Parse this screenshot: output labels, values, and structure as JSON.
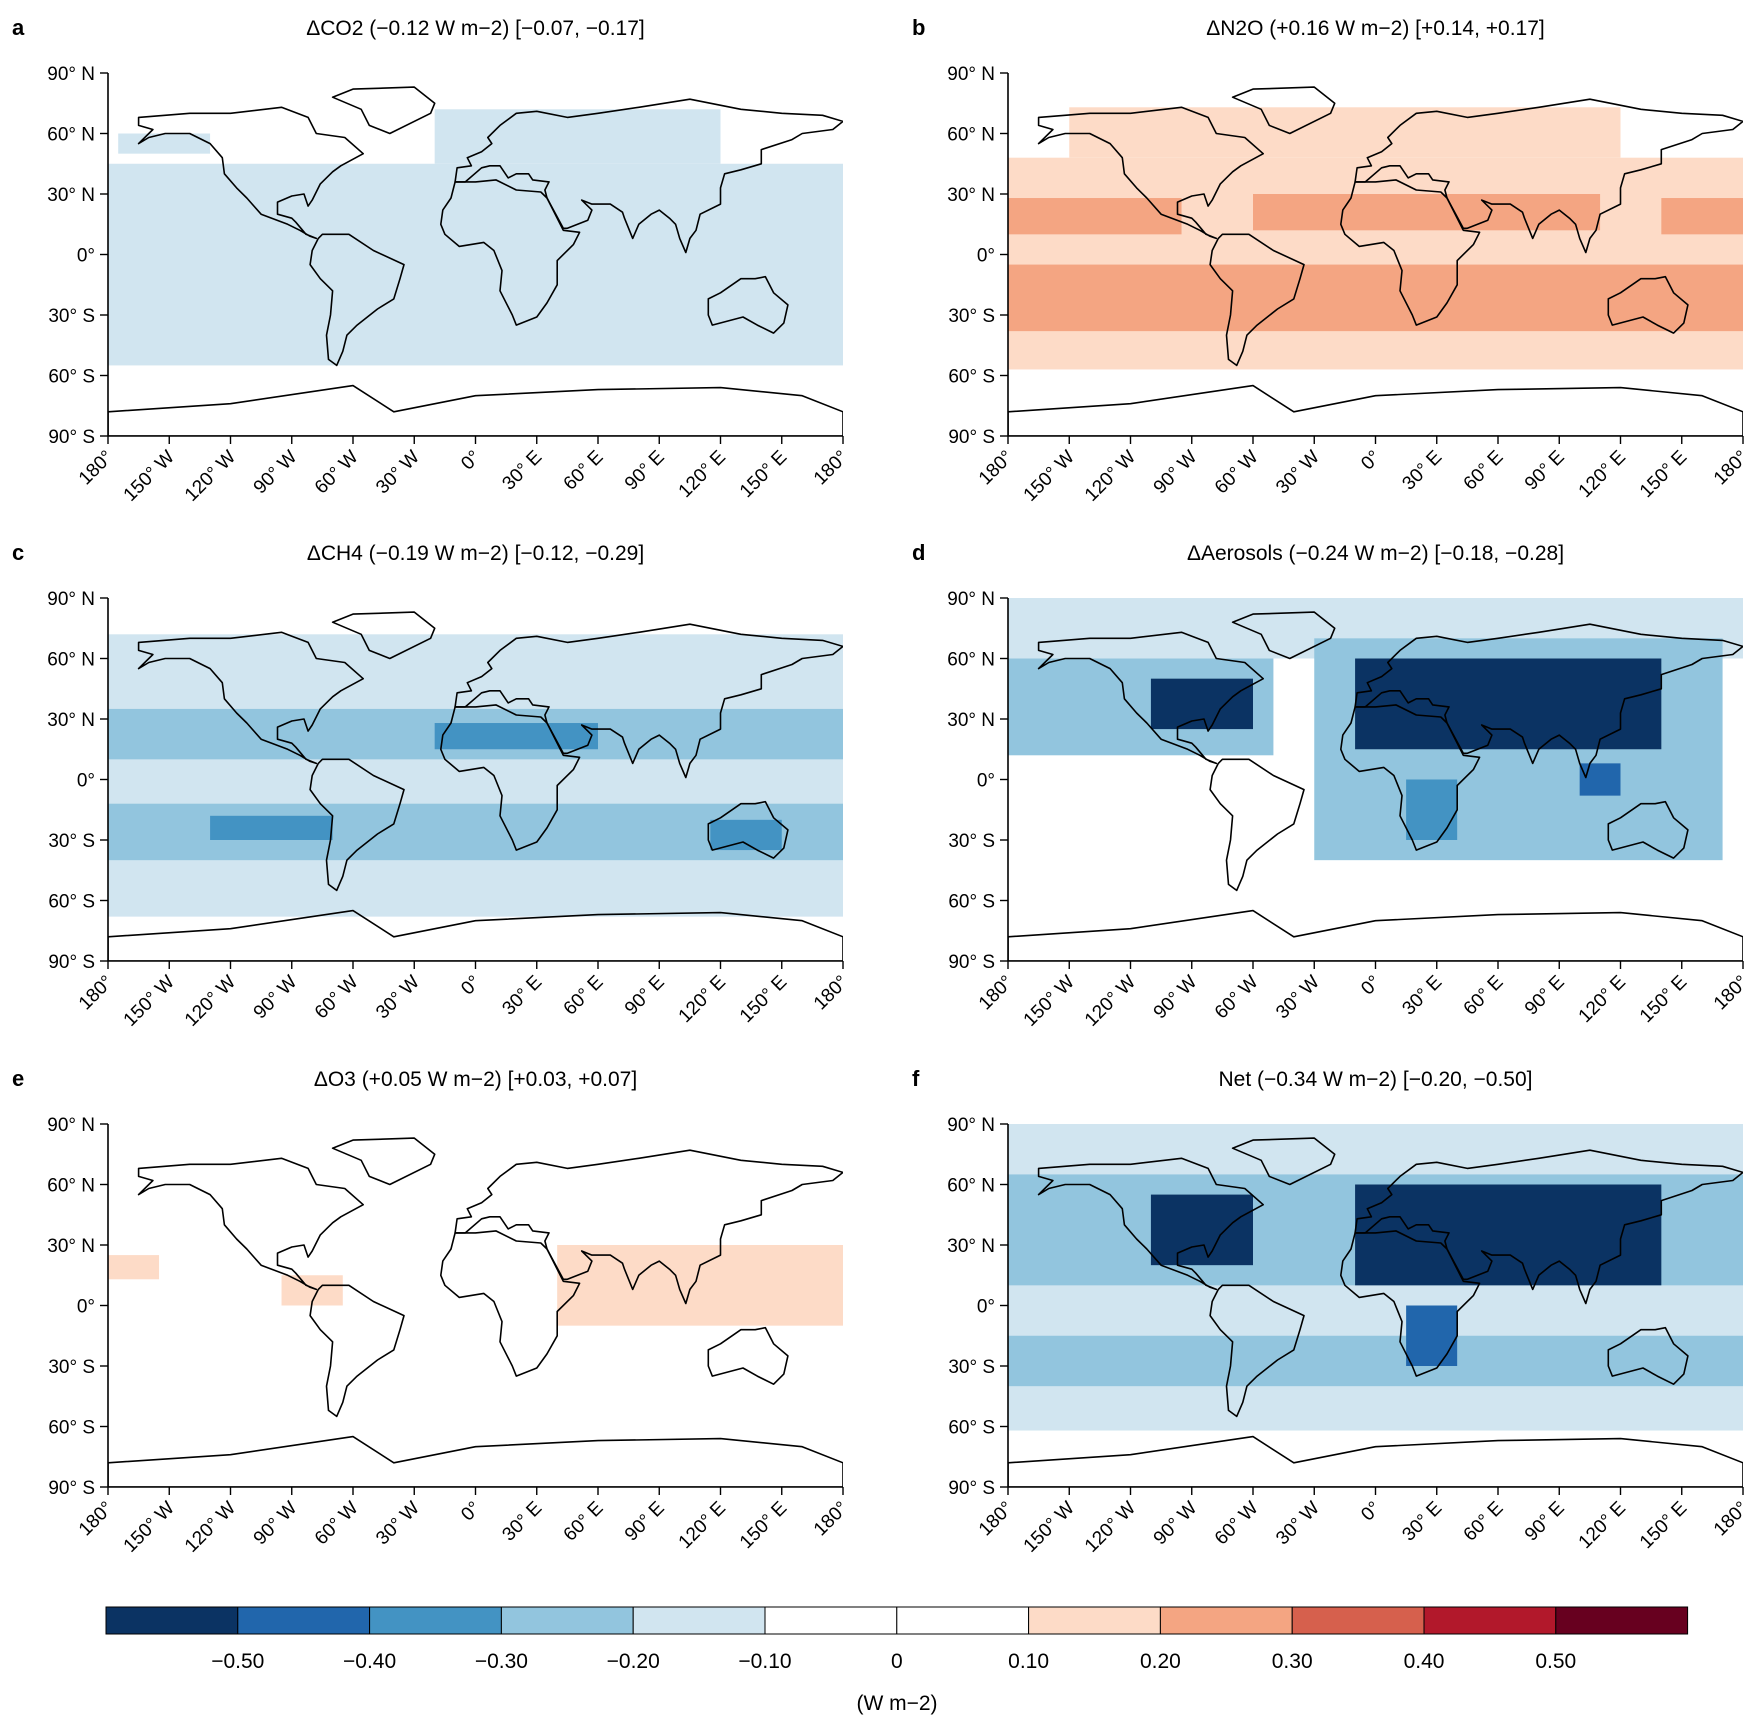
{
  "units_label": "(W m−2)",
  "colorbar": {
    "colors": [
      "#0b3363",
      "#2166ac",
      "#4393c3",
      "#92c5de",
      "#d1e5f0",
      "#ffffff",
      "#ffffff",
      "#fddbc7",
      "#f4a582",
      "#d6604d",
      "#b2182b",
      "#67001f"
    ],
    "tick_labels": [
      "−0.50",
      "−0.40",
      "−0.30",
      "−0.20",
      "−0.10",
      "0",
      "0.10",
      "0.20",
      "0.30",
      "0.40",
      "0.50"
    ]
  },
  "lat_labels": [
    "90° N",
    "60° N",
    "30° N",
    "0°",
    "30° S",
    "60° S",
    "90° S"
  ],
  "lon_labels": [
    "180°",
    "150° W",
    "120° W",
    "90° W",
    "60° W",
    "30° W",
    "0°",
    "30° E",
    "60° E",
    "90° E",
    "120° E",
    "150° E",
    "180°"
  ],
  "panels": [
    {
      "letter": "a",
      "title": "ΔCO2 (−0.12 W m−2) [−0.07, −0.17]"
    },
    {
      "letter": "b",
      "title": "ΔN2O (+0.16 W m−2) [+0.14, +0.17]"
    },
    {
      "letter": "c",
      "title": "ΔCH4 (−0.19 W m−2) [−0.12, −0.29]"
    },
    {
      "letter": "d",
      "title": "ΔAerosols (−0.24 W m−2) [−0.18, −0.28]"
    },
    {
      "letter": "e",
      "title": "ΔO3 (+0.05 W m−2) [+0.03, +0.07]"
    },
    {
      "letter": "f",
      "title": "Net (−0.34 W m−2) [−0.20, −0.50]"
    }
  ],
  "chart_data": {
    "type": "heatmap",
    "x_axis": {
      "range": [
        -180,
        180
      ],
      "ticks": [
        -180,
        -150,
        -120,
        -90,
        -60,
        -30,
        0,
        30,
        60,
        90,
        120,
        150,
        180
      ]
    },
    "y_axis": {
      "range": [
        -90,
        90
      ],
      "ticks": [
        90,
        60,
        30,
        0,
        -30,
        -60,
        -90
      ]
    },
    "bins": [
      -0.5,
      -0.4,
      -0.3,
      -0.2,
      -0.1,
      0,
      0.1,
      0.2,
      0.3,
      0.4,
      0.5
    ],
    "panels": [
      {
        "letter": "a",
        "regions": [
          {
            "lon": [
              -180,
              180
            ],
            "lat": [
              -55,
              45
            ],
            "value": -0.15
          },
          {
            "lon": [
              -20,
              120
            ],
            "lat": [
              45,
              72
            ],
            "value": -0.15
          },
          {
            "lon": [
              -175,
              -130
            ],
            "lat": [
              50,
              60
            ],
            "value": -0.15
          }
        ]
      },
      {
        "letter": "b",
        "regions": [
          {
            "lon": [
              -180,
              180
            ],
            "lat": [
              -57,
              48
            ],
            "value": 0.15
          },
          {
            "lon": [
              -150,
              120
            ],
            "lat": [
              48,
              73
            ],
            "value": 0.15
          },
          {
            "lon": [
              -180,
              -95
            ],
            "lat": [
              10,
              28
            ],
            "value": 0.25
          },
          {
            "lon": [
              -60,
              110
            ],
            "lat": [
              12,
              30
            ],
            "value": 0.25
          },
          {
            "lon": [
              140,
              180
            ],
            "lat": [
              10,
              28
            ],
            "value": 0.25
          },
          {
            "lon": [
              -180,
              180
            ],
            "lat": [
              -38,
              -5
            ],
            "value": 0.25
          }
        ]
      },
      {
        "letter": "c",
        "regions": [
          {
            "lon": [
              -180,
              180
            ],
            "lat": [
              -68,
              72
            ],
            "value": -0.15
          },
          {
            "lon": [
              -180,
              180
            ],
            "lat": [
              10,
              35
            ],
            "value": -0.25
          },
          {
            "lon": [
              -180,
              180
            ],
            "lat": [
              -40,
              -12
            ],
            "value": -0.25
          },
          {
            "lon": [
              -20,
              60
            ],
            "lat": [
              15,
              28
            ],
            "value": -0.35
          },
          {
            "lon": [
              -130,
              -70
            ],
            "lat": [
              -30,
              -18
            ],
            "value": -0.35
          },
          {
            "lon": [
              115,
              150
            ],
            "lat": [
              -35,
              -20
            ],
            "value": -0.35
          }
        ]
      },
      {
        "letter": "d",
        "regions": [
          {
            "lon": [
              -180,
              180
            ],
            "lat": [
              60,
              90
            ],
            "value": -0.15
          },
          {
            "lon": [
              -180,
              -50
            ],
            "lat": [
              12,
              60
            ],
            "value": -0.25
          },
          {
            "lon": [
              -30,
              170
            ],
            "lat": [
              -40,
              70
            ],
            "value": -0.25
          },
          {
            "lon": [
              -110,
              -60
            ],
            "lat": [
              25,
              50
            ],
            "value": -0.55
          },
          {
            "lon": [
              -10,
              140
            ],
            "lat": [
              15,
              60
            ],
            "value": -0.55
          },
          {
            "lon": [
              100,
              120
            ],
            "lat": [
              -8,
              8
            ],
            "value": -0.45
          },
          {
            "lon": [
              15,
              40
            ],
            "lat": [
              -30,
              0
            ],
            "value": -0.35
          }
        ]
      },
      {
        "letter": "e",
        "regions": [
          {
            "lon": [
              -180,
              -155
            ],
            "lat": [
              13,
              25
            ],
            "value": 0.15
          },
          {
            "lon": [
              -95,
              -65
            ],
            "lat": [
              0,
              15
            ],
            "value": 0.15
          },
          {
            "lon": [
              40,
              180
            ],
            "lat": [
              -10,
              30
            ],
            "value": 0.15
          }
        ]
      },
      {
        "letter": "f",
        "regions": [
          {
            "lon": [
              -180,
              180
            ],
            "lat": [
              -62,
              90
            ],
            "value": -0.15
          },
          {
            "lon": [
              -180,
              180
            ],
            "lat": [
              10,
              65
            ],
            "value": -0.25
          },
          {
            "lon": [
              -180,
              180
            ],
            "lat": [
              -40,
              -15
            ],
            "value": -0.25
          },
          {
            "lon": [
              -110,
              -60
            ],
            "lat": [
              20,
              55
            ],
            "value": -0.55
          },
          {
            "lon": [
              -10,
              140
            ],
            "lat": [
              10,
              60
            ],
            "value": -0.55
          },
          {
            "lon": [
              15,
              40
            ],
            "lat": [
              -30,
              0
            ],
            "value": -0.45
          }
        ]
      }
    ]
  }
}
